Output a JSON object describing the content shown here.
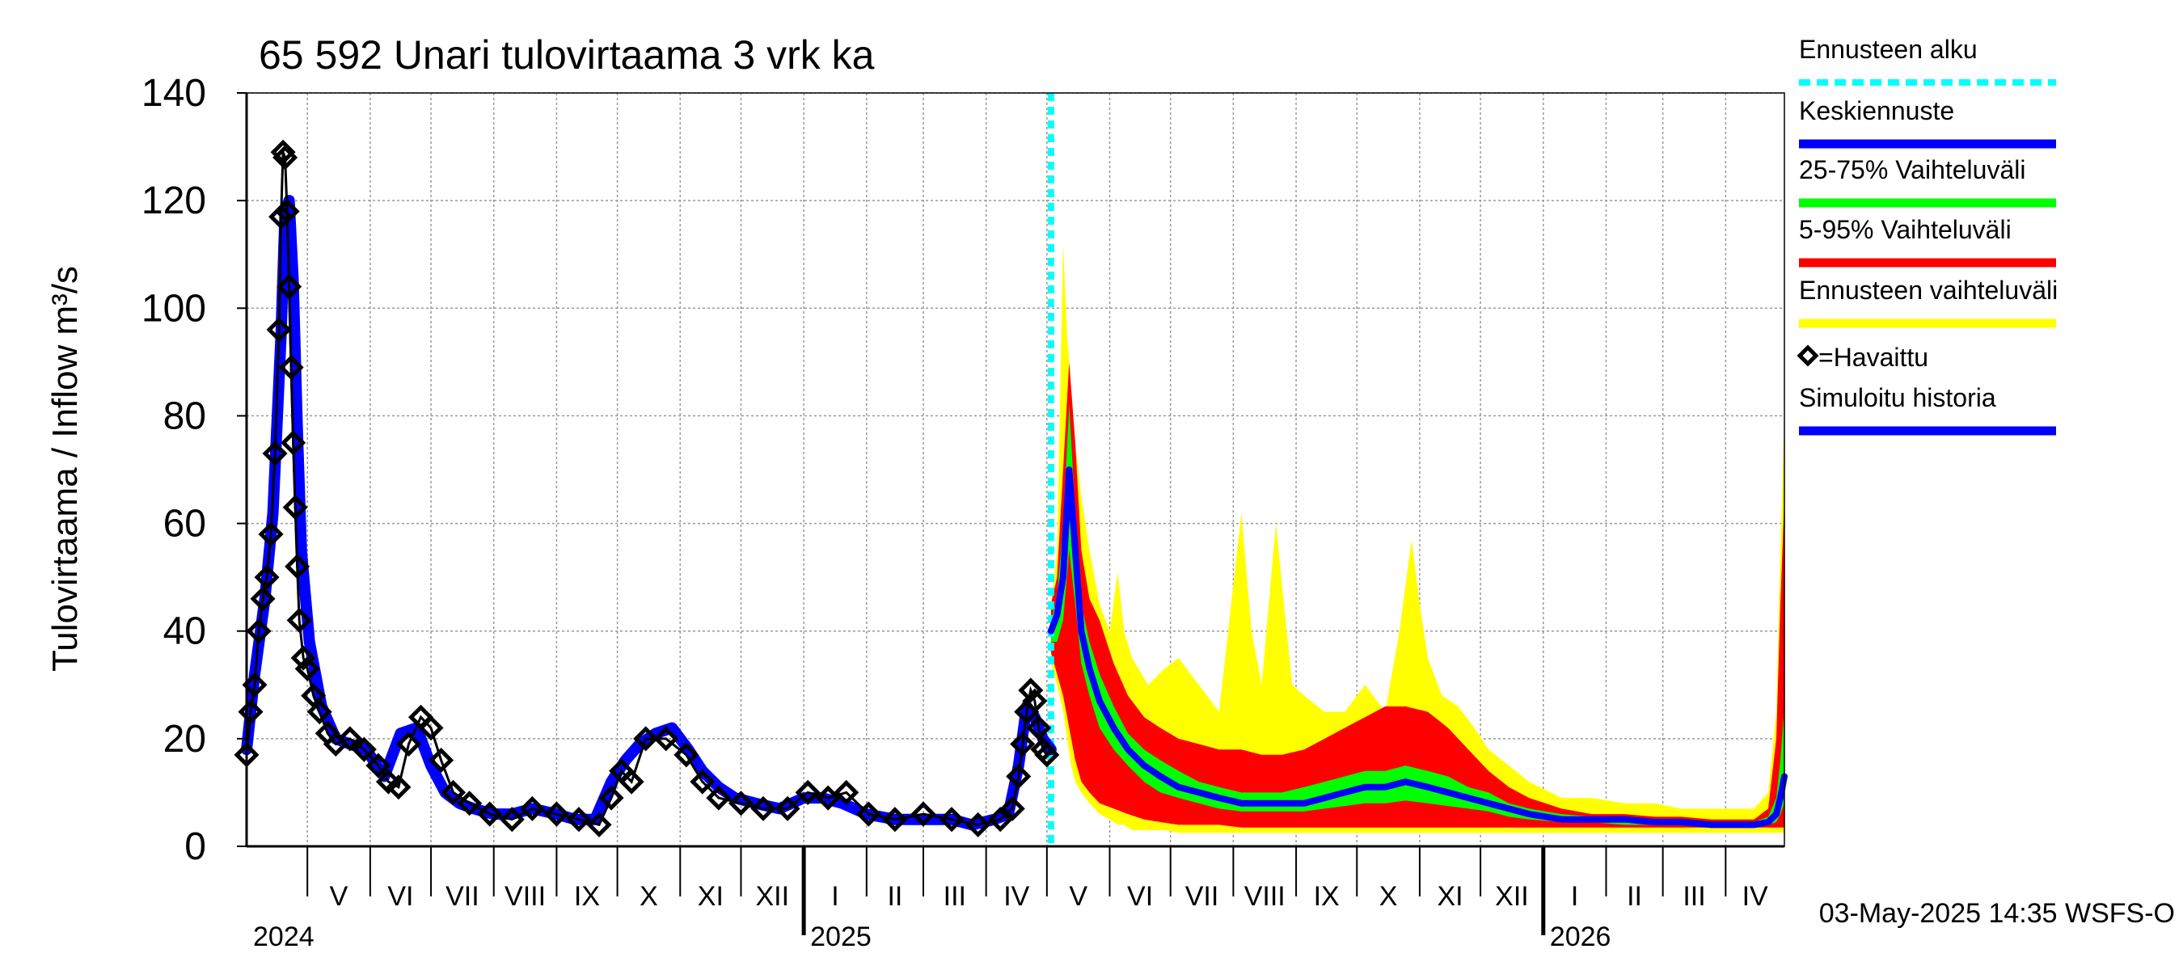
{
  "chart_data": {
    "type": "line",
    "title": "65 592 Unari tulovirtaama 3 vrk ka",
    "ylabel": "Tulovirtaama / Inflow    m³/s",
    "ylim": [
      0,
      140
    ],
    "yticks": [
      0,
      20,
      40,
      60,
      80,
      100,
      120,
      140
    ],
    "xlim": [
      "2024-04-01",
      "2026-04-30"
    ],
    "grid": true,
    "legend_position": "right",
    "forecast_start": "2025-05-03",
    "month_labels": [
      {
        "label": "V",
        "date": "2024-05-01"
      },
      {
        "label": "VI",
        "date": "2024-06-01"
      },
      {
        "label": "VII",
        "date": "2024-07-01"
      },
      {
        "label": "VIII",
        "date": "2024-08-01"
      },
      {
        "label": "IX",
        "date": "2024-09-01"
      },
      {
        "label": "X",
        "date": "2024-10-01"
      },
      {
        "label": "XI",
        "date": "2024-11-01"
      },
      {
        "label": "XII",
        "date": "2024-12-01"
      },
      {
        "label": "I",
        "date": "2025-01-01"
      },
      {
        "label": "II",
        "date": "2025-02-01"
      },
      {
        "label": "III",
        "date": "2025-03-01"
      },
      {
        "label": "IV",
        "date": "2025-04-01"
      },
      {
        "label": "V",
        "date": "2025-05-01"
      },
      {
        "label": "VI",
        "date": "2025-06-01"
      },
      {
        "label": "VII",
        "date": "2025-07-01"
      },
      {
        "label": "VIII",
        "date": "2025-08-01"
      },
      {
        "label": "IX",
        "date": "2025-09-01"
      },
      {
        "label": "X",
        "date": "2025-10-01"
      },
      {
        "label": "XI",
        "date": "2025-11-01"
      },
      {
        "label": "XII",
        "date": "2025-12-01"
      },
      {
        "label": "I",
        "date": "2026-01-01"
      },
      {
        "label": "II",
        "date": "2026-02-01"
      },
      {
        "label": "III",
        "date": "2026-03-01"
      },
      {
        "label": "IV",
        "date": "2026-04-01"
      }
    ],
    "year_labels": [
      {
        "label": "2024",
        "date": "2024-04-01"
      },
      {
        "label": "2025",
        "date": "2025-01-01"
      },
      {
        "label": "2026",
        "date": "2026-01-01"
      }
    ],
    "series": [
      {
        "name": "Simuloitu historia",
        "color": "#0000ff",
        "x": [
          "2024-04-01",
          "2024-04-05",
          "2024-04-10",
          "2024-04-14",
          "2024-04-18",
          "2024-04-20",
          "2024-04-22",
          "2024-04-24",
          "2024-04-26",
          "2024-04-28",
          "2024-05-02",
          "2024-05-08",
          "2024-05-15",
          "2024-05-22",
          "2024-05-30",
          "2024-06-08",
          "2024-06-16",
          "2024-06-24",
          "2024-07-01",
          "2024-07-08",
          "2024-07-15",
          "2024-07-22",
          "2024-08-01",
          "2024-08-10",
          "2024-08-20",
          "2024-09-01",
          "2024-09-10",
          "2024-09-20",
          "2024-09-28",
          "2024-10-05",
          "2024-10-12",
          "2024-10-20",
          "2024-10-28",
          "2024-11-05",
          "2024-11-12",
          "2024-11-20",
          "2024-11-28",
          "2024-12-08",
          "2024-12-20",
          "2025-01-01",
          "2025-01-10",
          "2025-01-20",
          "2025-02-01",
          "2025-02-15",
          "2025-03-01",
          "2025-03-15",
          "2025-03-25",
          "2025-04-05",
          "2025-04-12",
          "2025-04-17",
          "2025-04-21",
          "2025-04-25",
          "2025-04-29",
          "2025-05-03"
        ],
        "values": [
          18,
          32,
          46,
          62,
          95,
          118,
          120,
          105,
          78,
          55,
          38,
          26,
          20,
          19,
          18,
          13,
          21,
          22,
          15,
          10,
          8,
          7,
          6,
          6,
          7,
          6,
          5,
          5,
          12,
          16,
          19,
          21,
          22,
          18,
          14,
          11,
          9,
          8,
          7,
          9,
          9,
          8,
          6,
          5,
          5,
          5,
          4,
          5,
          6,
          15,
          26,
          24,
          20,
          18
        ]
      },
      {
        "name": "Havaittu",
        "color": "#000000",
        "x": [
          "2024-04-01",
          "2024-04-03",
          "2024-04-05",
          "2024-04-07",
          "2024-04-09",
          "2024-04-11",
          "2024-04-13",
          "2024-04-15",
          "2024-04-17",
          "2024-04-18",
          "2024-04-19",
          "2024-04-20",
          "2024-04-21",
          "2024-04-22",
          "2024-04-23",
          "2024-04-24",
          "2024-04-25",
          "2024-04-26",
          "2024-04-27",
          "2024-04-29",
          "2024-05-01",
          "2024-05-04",
          "2024-05-07",
          "2024-05-11",
          "2024-05-15",
          "2024-05-22",
          "2024-05-29",
          "2024-06-05",
          "2024-06-10",
          "2024-06-15",
          "2024-06-20",
          "2024-06-26",
          "2024-07-01",
          "2024-07-06",
          "2024-07-12",
          "2024-07-20",
          "2024-07-30",
          "2024-08-10",
          "2024-08-20",
          "2024-09-01",
          "2024-09-12",
          "2024-09-22",
          "2024-09-28",
          "2024-10-03",
          "2024-10-08",
          "2024-10-15",
          "2024-10-25",
          "2024-11-04",
          "2024-11-12",
          "2024-11-20",
          "2024-12-01",
          "2024-12-12",
          "2024-12-24",
          "2025-01-03",
          "2025-01-13",
          "2025-01-22",
          "2025-02-02",
          "2025-02-15",
          "2025-03-01",
          "2025-03-15",
          "2025-03-28",
          "2025-04-08",
          "2025-04-14",
          "2025-04-17",
          "2025-04-19",
          "2025-04-21",
          "2025-04-23",
          "2025-04-25",
          "2025-04-27",
          "2025-04-29",
          "2025-05-01"
        ],
        "values": [
          17,
          25,
          30,
          40,
          46,
          50,
          58,
          73,
          96,
          117,
          129,
          128,
          118,
          104,
          89,
          75,
          63,
          52,
          42,
          35,
          33,
          28,
          25,
          21,
          19,
          20,
          18,
          15,
          12,
          11,
          19,
          24,
          22,
          16,
          10,
          8,
          6,
          5,
          7,
          6,
          5,
          4,
          9,
          14,
          12,
          20,
          20,
          17,
          12,
          9,
          8,
          7,
          7,
          10,
          9,
          10,
          6,
          5,
          6,
          5,
          4,
          5,
          7,
          13,
          19,
          25,
          29,
          27,
          22,
          18,
          17
        ]
      },
      {
        "name": "Keskiennuste",
        "color": "#0000ff",
        "x": [
          "2025-05-03",
          "2025-05-06",
          "2025-05-09",
          "2025-05-12",
          "2025-05-15",
          "2025-05-18",
          "2025-05-22",
          "2025-05-27",
          "2025-06-03",
          "2025-06-10",
          "2025-06-18",
          "2025-06-26",
          "2025-07-05",
          "2025-07-15",
          "2025-07-25",
          "2025-08-05",
          "2025-08-15",
          "2025-08-25",
          "2025-09-05",
          "2025-09-15",
          "2025-09-25",
          "2025-10-05",
          "2025-10-15",
          "2025-10-25",
          "2025-11-05",
          "2025-11-15",
          "2025-11-25",
          "2025-12-05",
          "2025-12-15",
          "2025-12-25",
          "2026-01-10",
          "2026-01-25",
          "2026-02-10",
          "2026-02-25",
          "2026-03-10",
          "2026-03-25",
          "2026-04-05",
          "2026-04-15",
          "2026-04-22",
          "2026-04-26",
          "2026-04-28",
          "2026-04-30"
        ],
        "values": [
          40,
          43,
          50,
          70,
          55,
          40,
          33,
          27,
          22,
          18,
          15,
          13,
          11,
          10,
          9,
          8,
          8,
          8,
          8,
          9,
          10,
          11,
          11,
          12,
          11,
          10,
          9,
          8,
          7,
          6,
          5,
          5,
          5,
          4.5,
          4.5,
          4,
          4,
          4,
          4.5,
          6,
          9,
          13
        ]
      },
      {
        "name": "Ennusteen vaihteluväli",
        "color": "#ffff00",
        "x": [
          "2025-05-03",
          "2025-05-06",
          "2025-05-09",
          "2025-05-11",
          "2025-05-13",
          "2025-05-15",
          "2025-05-18",
          "2025-05-22",
          "2025-05-27",
          "2025-06-01",
          "2025-06-05",
          "2025-06-08",
          "2025-06-12",
          "2025-06-20",
          "2025-06-28",
          "2025-07-05",
          "2025-07-15",
          "2025-07-25",
          "2025-08-05",
          "2025-08-10",
          "2025-08-15",
          "2025-08-22",
          "2025-08-26",
          "2025-08-30",
          "2025-09-05",
          "2025-09-15",
          "2025-09-25",
          "2025-10-05",
          "2025-10-15",
          "2025-10-22",
          "2025-10-28",
          "2025-11-01",
          "2025-11-05",
          "2025-11-12",
          "2025-11-20",
          "2025-11-28",
          "2025-12-05",
          "2025-12-15",
          "2025-12-25",
          "2026-01-10",
          "2026-01-25",
          "2026-02-10",
          "2026-02-25",
          "2026-03-10",
          "2026-03-25",
          "2026-04-05",
          "2026-04-15",
          "2026-04-22",
          "2026-04-26",
          "2026-04-28",
          "2026-04-30"
        ],
        "upper": [
          45,
          55,
          112,
          95,
          85,
          75,
          65,
          55,
          45,
          40,
          51,
          40,
          35,
          30,
          33,
          35,
          30,
          25,
          62,
          40,
          30,
          60,
          45,
          30,
          28,
          25,
          25,
          30,
          25,
          40,
          57,
          45,
          35,
          28,
          26,
          22,
          18,
          15,
          12,
          9,
          9,
          8,
          8,
          7,
          7,
          7,
          7,
          10,
          25,
          55,
          80
        ],
        "lower": [
          34,
          30,
          25,
          20,
          15,
          12,
          10,
          8,
          6,
          5,
          4,
          4,
          3,
          3,
          3,
          2.5,
          2.5,
          2.5,
          2.5,
          2.5,
          2.5,
          2.5,
          2.5,
          2.5,
          2.5,
          2.5,
          2.5,
          2.5,
          2.5,
          2.5,
          2.5,
          2.5,
          2.5,
          2.5,
          2.5,
          2.5,
          2.5,
          2.5,
          2.5,
          2.5,
          2.5,
          2.5,
          2.5,
          2.5,
          2.5,
          2.5,
          2.5,
          2.5,
          2.5,
          2.5,
          2.5
        ]
      },
      {
        "name": "5-95% Vaihteluväli",
        "color": "#ff0000",
        "x": [
          "2025-05-03",
          "2025-05-06",
          "2025-05-09",
          "2025-05-12",
          "2025-05-15",
          "2025-05-18",
          "2025-05-22",
          "2025-05-27",
          "2025-06-03",
          "2025-06-10",
          "2025-06-18",
          "2025-06-26",
          "2025-07-05",
          "2025-07-15",
          "2025-07-25",
          "2025-08-05",
          "2025-08-15",
          "2025-08-25",
          "2025-09-05",
          "2025-09-15",
          "2025-09-25",
          "2025-10-05",
          "2025-10-15",
          "2025-10-25",
          "2025-11-05",
          "2025-11-15",
          "2025-11-25",
          "2025-12-05",
          "2025-12-15",
          "2025-12-25",
          "2026-01-10",
          "2026-01-25",
          "2026-02-10",
          "2026-02-25",
          "2026-03-10",
          "2026-03-25",
          "2026-04-05",
          "2026-04-15",
          "2026-04-22",
          "2026-04-26",
          "2026-04-28",
          "2026-04-30"
        ],
        "upper": [
          45,
          50,
          70,
          90,
          75,
          55,
          46,
          42,
          34,
          28,
          24,
          22,
          20,
          19,
          18,
          18,
          17,
          17,
          18,
          20,
          22,
          24,
          26,
          26,
          25,
          22,
          18,
          14,
          11,
          9,
          7,
          6,
          6,
          5.5,
          5.5,
          5,
          5,
          5,
          7,
          20,
          45,
          65
        ],
        "lower": [
          36,
          32,
          28,
          22,
          16,
          12,
          10,
          8,
          7,
          6,
          5,
          4.5,
          4,
          4,
          4,
          3.5,
          3.5,
          3.5,
          3.5,
          3.5,
          3.5,
          3.5,
          3.5,
          3.5,
          3.5,
          3.5,
          3.5,
          3.5,
          3.5,
          3.5,
          3.5,
          3.5,
          3.5,
          3.5,
          3.5,
          3.5,
          3.5,
          3.5,
          3.5,
          3.5,
          3.5,
          3.5
        ]
      },
      {
        "name": "25-75% Vaihteluväli",
        "color": "#00ff00",
        "x": [
          "2025-05-03",
          "2025-05-06",
          "2025-05-09",
          "2025-05-12",
          "2025-05-15",
          "2025-05-18",
          "2025-05-22",
          "2025-05-27",
          "2025-06-03",
          "2025-06-10",
          "2025-06-18",
          "2025-06-26",
          "2025-07-05",
          "2025-07-15",
          "2025-07-25",
          "2025-08-05",
          "2025-08-15",
          "2025-08-25",
          "2025-09-05",
          "2025-09-15",
          "2025-09-25",
          "2025-10-05",
          "2025-10-15",
          "2025-10-25",
          "2025-11-05",
          "2025-11-15",
          "2025-11-25",
          "2025-12-05",
          "2025-12-15",
          "2025-12-25",
          "2026-01-10",
          "2026-01-25",
          "2026-02-10",
          "2026-02-25",
          "2026-03-10",
          "2026-03-25",
          "2026-04-05",
          "2026-04-15",
          "2026-04-22",
          "2026-04-26",
          "2026-04-28",
          "2026-04-30"
        ],
        "upper": [
          42,
          46,
          60,
          82,
          62,
          45,
          38,
          32,
          26,
          21,
          18,
          16,
          14,
          12,
          11,
          10,
          10,
          10,
          11,
          12,
          13,
          14,
          14,
          15,
          14,
          13,
          11,
          10,
          8,
          7,
          6,
          5.5,
          5.5,
          5,
          5,
          4.5,
          4.5,
          4.5,
          5.5,
          9,
          16,
          26
        ],
        "lower": [
          38,
          38,
          42,
          55,
          45,
          34,
          28,
          22,
          18,
          15,
          12,
          10,
          9,
          8,
          7,
          6.5,
          6.5,
          6.5,
          6.5,
          7,
          7.5,
          8,
          8,
          8.5,
          8,
          7.5,
          7,
          6.5,
          5.5,
          5,
          4.5,
          4.5,
          4,
          4,
          4,
          3.5,
          3.5,
          3.5,
          4,
          4.5,
          6,
          8
        ]
      }
    ],
    "legend": [
      {
        "label": "Ennusteen alku",
        "color": "#00ffff",
        "style": "dashed"
      },
      {
        "label": "Keskiennuste",
        "color": "#0000ff",
        "style": "solid"
      },
      {
        "label": "25-75% Vaihteluväli",
        "color": "#00ff00",
        "style": "solid"
      },
      {
        "label": "5-95% Vaihteluväli",
        "color": "#ff0000",
        "style": "solid"
      },
      {
        "label": "Ennusteen vaihteluväli",
        "color": "#ffff00",
        "style": "solid"
      },
      {
        "label": "◇=Havaittu",
        "color": "#000000",
        "style": "marker"
      },
      {
        "label": "Simuloitu historia",
        "color": "#0000ff",
        "style": "solid"
      }
    ],
    "footer": "03-May-2025 14:35 WSFS-O"
  }
}
